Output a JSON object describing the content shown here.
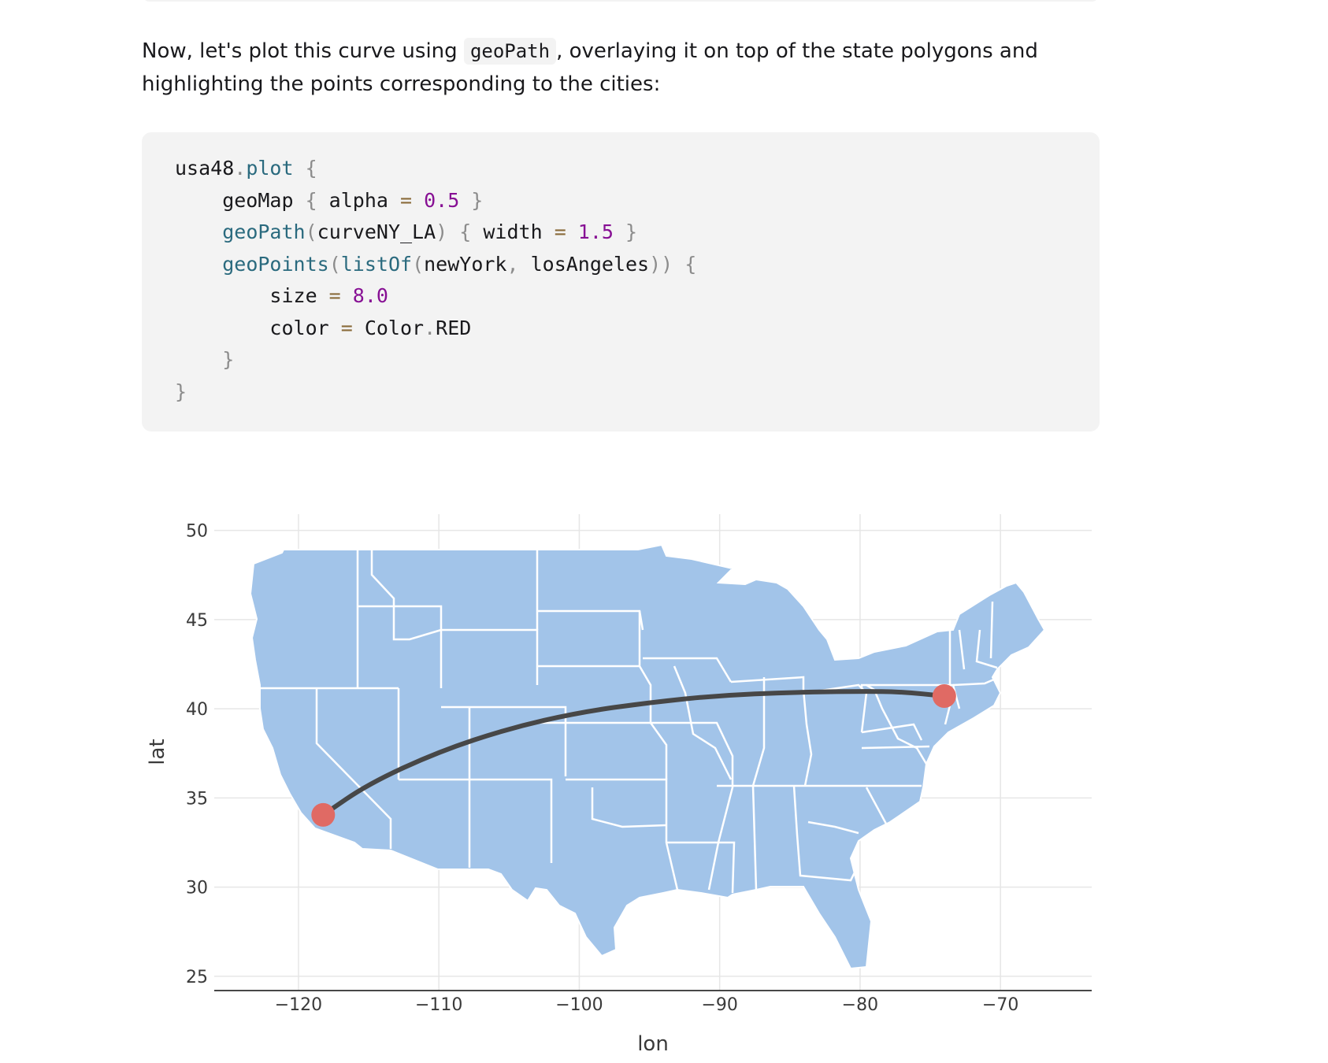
{
  "intro": {
    "before": "Now, let's plot this curve using ",
    "code": "geoPath",
    "after": ", overlaying it on top of the state polygons and highlighting the points corresponding to the cities:"
  },
  "code_lines": [
    [
      {
        "t": "usa48",
        "c": "plain"
      },
      {
        "t": ".",
        "c": "dim"
      },
      {
        "t": "plot",
        "c": "fn"
      },
      {
        "t": " {",
        "c": "dim"
      }
    ],
    [
      {
        "t": "    geoMap",
        "c": "plain"
      },
      {
        "t": " { ",
        "c": "dim"
      },
      {
        "t": "alpha",
        "c": "plain"
      },
      {
        "t": " = ",
        "c": "op"
      },
      {
        "t": "0.5",
        "c": "num"
      },
      {
        "t": " }",
        "c": "dim"
      }
    ],
    [
      {
        "t": "    ",
        "c": "plain"
      },
      {
        "t": "geoPath",
        "c": "fn"
      },
      {
        "t": "(",
        "c": "dim"
      },
      {
        "t": "curveNY_LA",
        "c": "plain"
      },
      {
        "t": ") { ",
        "c": "dim"
      },
      {
        "t": "width",
        "c": "plain"
      },
      {
        "t": " = ",
        "c": "op"
      },
      {
        "t": "1.5",
        "c": "num"
      },
      {
        "t": " }",
        "c": "dim"
      }
    ],
    [
      {
        "t": "    ",
        "c": "plain"
      },
      {
        "t": "geoPoints",
        "c": "fn"
      },
      {
        "t": "(",
        "c": "dim"
      },
      {
        "t": "listOf",
        "c": "fn"
      },
      {
        "t": "(",
        "c": "dim"
      },
      {
        "t": "newYork",
        "c": "plain"
      },
      {
        "t": ", ",
        "c": "dim"
      },
      {
        "t": "losAngeles",
        "c": "plain"
      },
      {
        "t": ")) {",
        "c": "dim"
      }
    ],
    [
      {
        "t": "        size",
        "c": "plain"
      },
      {
        "t": " = ",
        "c": "op"
      },
      {
        "t": "8.0",
        "c": "num"
      }
    ],
    [
      {
        "t": "        color",
        "c": "plain"
      },
      {
        "t": " = ",
        "c": "op"
      },
      {
        "t": "Color",
        "c": "plain"
      },
      {
        "t": ".",
        "c": "dim"
      },
      {
        "t": "RED",
        "c": "plain"
      }
    ],
    [
      {
        "t": "    }",
        "c": "dim"
      }
    ],
    [
      {
        "t": "}",
        "c": "dim"
      }
    ]
  ],
  "chart_data": {
    "type": "scatter",
    "xlabel": "lon",
    "ylabel": "lat",
    "xlim": [
      -126,
      -63.5
    ],
    "ylim": [
      24.2,
      50.6
    ],
    "x_ticks": [
      -120,
      -110,
      -100,
      -90,
      -80,
      -70
    ],
    "y_ticks": [
      25,
      30,
      35,
      40,
      45,
      50
    ],
    "x_tick_labels": [
      "−120",
      "−110",
      "−100",
      "−90",
      "−80",
      "−70"
    ],
    "y_tick_labels": [
      "25",
      "30",
      "35",
      "40",
      "45",
      "50"
    ],
    "grid": true,
    "map": {
      "fill": "#a2c4e9",
      "stroke": "#ffffff",
      "alpha": 0.5
    },
    "path": {
      "name": "curveNY_LA",
      "color": "#474747",
      "lon": [
        -118.24,
        -115,
        -110,
        -105,
        -100,
        -95,
        -90,
        -85,
        -80,
        -77,
        -74.0
      ],
      "lat": [
        34.05,
        35.8,
        37.6,
        38.9,
        39.8,
        40.35,
        40.75,
        40.92,
        40.98,
        40.95,
        40.71
      ]
    },
    "points": [
      {
        "lon": -74.0,
        "lat": 40.71
      },
      {
        "lon": -118.24,
        "lat": 34.05
      }
    ],
    "point_color": "#e06a64",
    "point_size": 8.0
  }
}
